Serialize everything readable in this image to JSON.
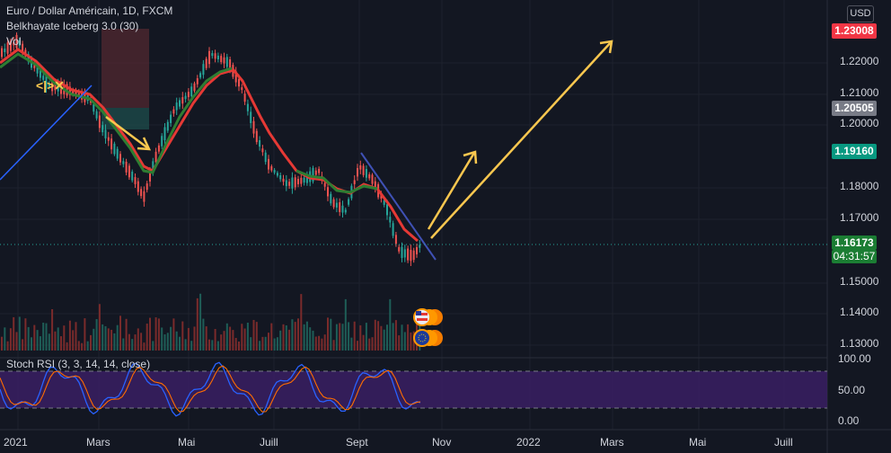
{
  "header": {
    "symbol_title": "Euro / Dollar Américain, 1D, FXCM",
    "indicator": "Belkhayate Iceberg 3.0 (30)",
    "volume": "Vol",
    "currency_button": "USD"
  },
  "oscillator": {
    "title": "Stoch RSI (3, 3, 14, 14, close)",
    "scale": [
      "100.00",
      "50.00",
      "0.00"
    ]
  },
  "price_scale": [
    "1.22000",
    "1.21000",
    "1.20000",
    "1.18000",
    "1.17000",
    "1.15000",
    "1.14000",
    "1.13000"
  ],
  "price_tags": {
    "target_high": "1.23008",
    "level_mid": "1.20505",
    "level_green": "1.19160",
    "current": "1.16173",
    "countdown": "04:31:57"
  },
  "time_axis": [
    "2021",
    "Mars",
    "Mai",
    "Juill",
    "Sept",
    "Nov",
    "2022",
    "Mars",
    "Mai",
    "Juill"
  ],
  "colors": {
    "background": "#131722",
    "bull": "#26a69a",
    "bear": "#ef5350",
    "ma_red": "#e53935",
    "ma_green": "#2e7d32",
    "trend_blue": "#3f51b5",
    "arrow_yellow": "#f9c74f",
    "rsi_band": "#3a1f63"
  },
  "icons": [
    "us-flag-event-icon",
    "eu-flag-event-icon"
  ]
}
